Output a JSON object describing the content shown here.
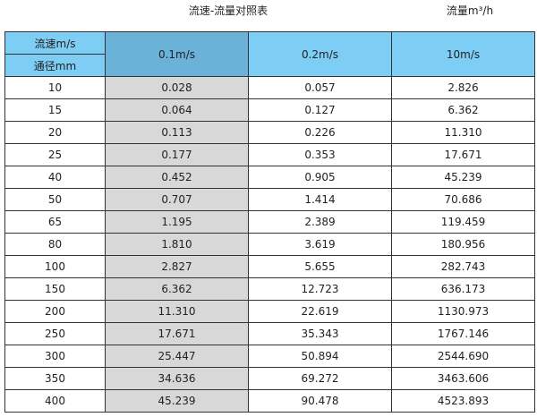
{
  "title": "流速-流量对照表",
  "unit_label": "流量m³/h",
  "colors": {
    "header": "#7dcdf4",
    "header_selected": "#6ab2d7",
    "highlight_column": "#d8d8d8"
  },
  "table": {
    "corner_top": "流速m/s",
    "corner_bottom": "通径mm",
    "columns": [
      "0.1m/s",
      "0.2m/s",
      "10m/s"
    ],
    "rows": [
      [
        "10",
        "0.028",
        "0.057",
        "2.826"
      ],
      [
        "15",
        "0.064",
        "0.127",
        "6.362"
      ],
      [
        "20",
        "0.113",
        "0.226",
        "11.310"
      ],
      [
        "25",
        "0.177",
        "0.353",
        "17.671"
      ],
      [
        "40",
        "0.452",
        "0.905",
        "45.239"
      ],
      [
        "50",
        "0.707",
        "1.414",
        "70.686"
      ],
      [
        "65",
        "1.195",
        "2.389",
        "119.459"
      ],
      [
        "80",
        "1.810",
        "3.619",
        "180.956"
      ],
      [
        "100",
        "2.827",
        "5.655",
        "282.743"
      ],
      [
        "150",
        "6.362",
        "12.723",
        "636.173"
      ],
      [
        "200",
        "11.310",
        "22.619",
        "1130.973"
      ],
      [
        "250",
        "17.671",
        "35.343",
        "1767.146"
      ],
      [
        "300",
        "25.447",
        "50.894",
        "2544.690"
      ],
      [
        "350",
        "34.636",
        "69.272",
        "3463.606"
      ],
      [
        "400",
        "45.239",
        "90.478",
        "4523.893"
      ]
    ]
  }
}
